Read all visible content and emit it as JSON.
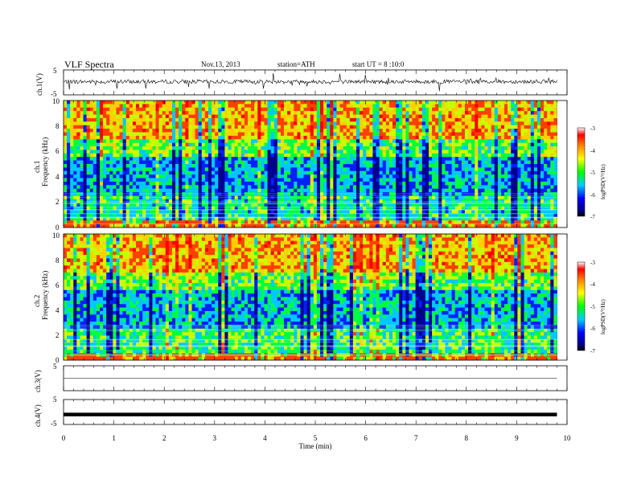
{
  "header": {
    "title": "VLF Spectra",
    "date": "Nov.13, 2013",
    "station": "station=ATH",
    "start": "start UT =  8 :10:0"
  },
  "chart_data": [
    {
      "type": "line",
      "panel": "ch1-waveform",
      "ylabel": "ch.1(V)",
      "ylim": [
        -5,
        5
      ],
      "yticks": [
        "5",
        "-5"
      ],
      "xlim": [
        0,
        10
      ],
      "data_end_min": 9.8,
      "baseline": 0.3,
      "series": [
        {
          "x": [
            0,
            2,
            4,
            6,
            8,
            9.8
          ],
          "y": [
            0.3,
            0.3,
            0.3,
            0.3,
            0.3,
            0.3
          ]
        }
      ]
    },
    {
      "type": "heatmap",
      "panel": "ch1-spectrogram",
      "ylabel": "Frequency (kHz)",
      "channel_label": "ch.1",
      "ylim": [
        0,
        10
      ],
      "yticks": [
        "0",
        "2",
        "4",
        "6",
        "8",
        "10"
      ],
      "xlim": [
        0,
        10
      ],
      "data_end_min": 9.8,
      "colorbar": {
        "label": "logPSD(V²/Hz)",
        "range": [
          -7,
          -3
        ],
        "ticks": [
          "-3",
          "-4",
          "-5",
          "-6",
          "-7"
        ]
      }
    },
    {
      "type": "heatmap",
      "panel": "ch2-spectrogram",
      "ylabel": "Frequency (kHz)",
      "channel_label": "ch.2",
      "ylim": [
        0,
        10
      ],
      "yticks": [
        "0",
        "2",
        "4",
        "6",
        "8",
        "10"
      ],
      "xlim": [
        0,
        10
      ],
      "data_end_min": 9.8,
      "colorbar": {
        "label": "logPSD(V²/Hz)",
        "range": [
          -7,
          -3
        ],
        "ticks": [
          "-3",
          "-4",
          "-5",
          "-6",
          "-7"
        ]
      }
    },
    {
      "type": "line",
      "panel": "ch3-waveform",
      "ylabel": "ch.3(V)",
      "ylim": [
        -5,
        5
      ],
      "yticks": [
        "5"
      ],
      "xlim": [
        0,
        10
      ],
      "data_end_min": 9.8,
      "baseline": 0,
      "series": [
        {
          "x": [
            0,
            9.8
          ],
          "y": [
            0,
            0
          ]
        }
      ]
    },
    {
      "type": "line",
      "panel": "ch4-waveform",
      "ylabel": "ch.4(V)",
      "ylim": [
        -5,
        5
      ],
      "yticks": [
        "5",
        "-5"
      ],
      "xlim": [
        0,
        10
      ],
      "data_end_min": 9.8,
      "baseline": -1,
      "series": [
        {
          "x": [
            0,
            9.8
          ],
          "y": [
            -1,
            -1
          ]
        }
      ]
    }
  ],
  "xaxis": {
    "label": "Time (min)",
    "ticks": [
      "0",
      "1",
      "2",
      "3",
      "4",
      "5",
      "6",
      "7",
      "8",
      "9",
      "10"
    ]
  }
}
